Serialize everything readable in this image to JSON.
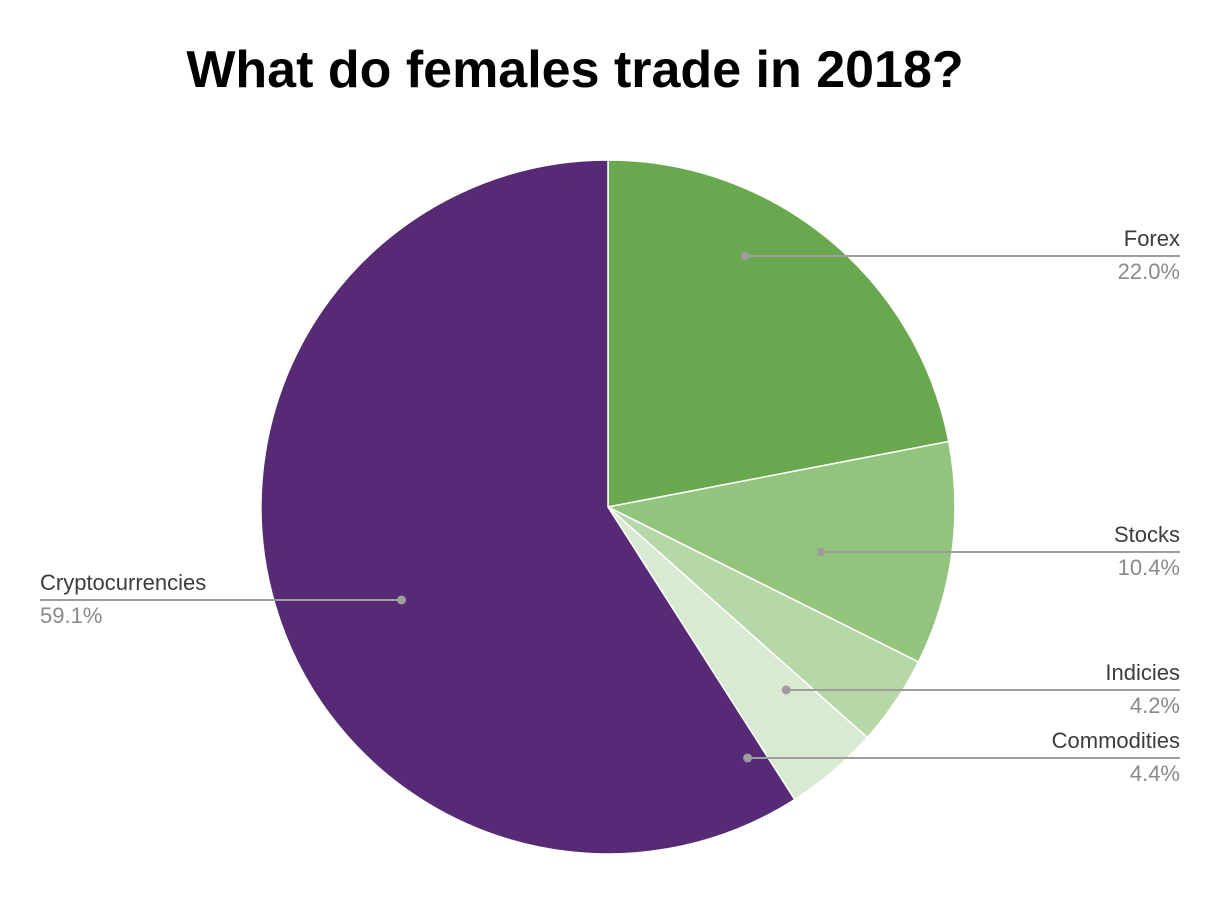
{
  "title": "What do females trade in 2018?",
  "chart_data": {
    "type": "pie",
    "title": "What do females trade in 2018?",
    "start_angle_deg": 0,
    "direction": "clockwise",
    "slices": [
      {
        "label": "Forex",
        "value": 22.0,
        "value_label": "22.0%",
        "color": "#6aa84f"
      },
      {
        "label": "Stocks",
        "value": 10.4,
        "value_label": "10.4%",
        "color": "#93c47d"
      },
      {
        "label": "Indicies",
        "value": 4.2,
        "value_label": "4.2%",
        "color": "#b6d7a8"
      },
      {
        "label": "Commodities",
        "value": 4.4,
        "value_label": "4.4%",
        "color": "#d9ead3"
      },
      {
        "label": "Cryptocurrencies",
        "value": 59.1,
        "value_label": "59.1%",
        "color": "#562a75"
      }
    ],
    "colors": {
      "leader_line": "#9e9e9e",
      "label_text": "#3c3c3c",
      "value_text": "#8a8a8a"
    }
  }
}
